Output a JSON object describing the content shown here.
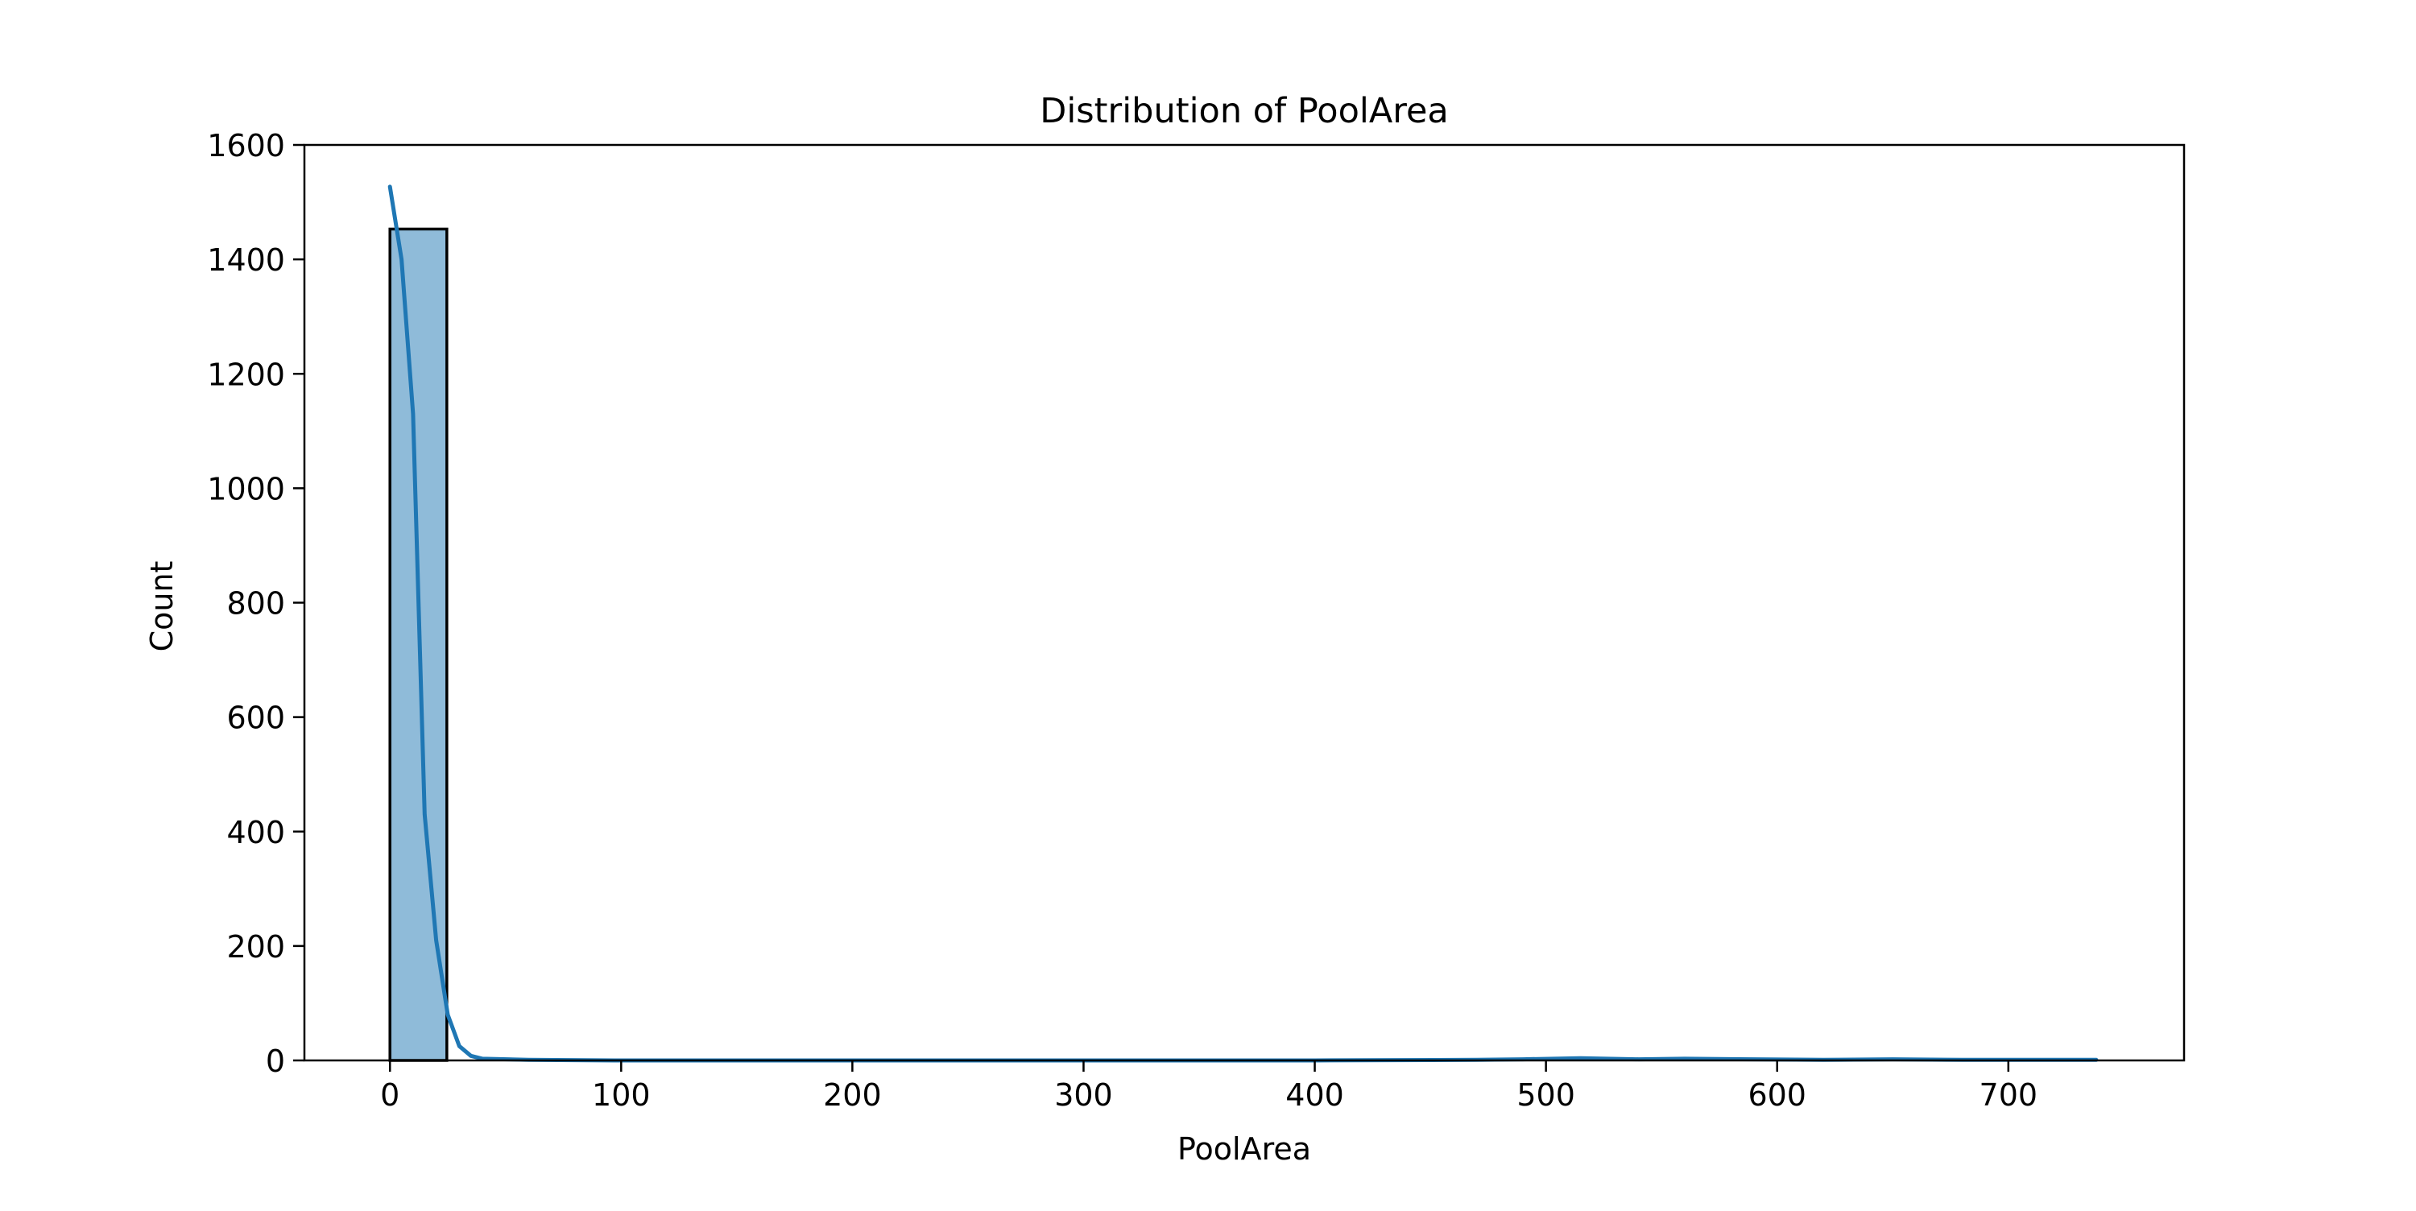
{
  "chart_data": {
    "type": "histogram",
    "title": "Distribution of PoolArea",
    "xlabel": "PoolArea",
    "ylabel": "Count",
    "xlim": [
      -37,
      776
    ],
    "ylim": [
      0,
      1600
    ],
    "xticks": [
      0,
      100,
      200,
      300,
      400,
      500,
      600,
      700
    ],
    "yticks": [
      0,
      200,
      400,
      600,
      800,
      1000,
      1200,
      1400,
      1600
    ],
    "bins": [
      {
        "x0": 0,
        "x1": 24.6,
        "count": 1453
      }
    ],
    "kde": {
      "x": [
        0,
        5,
        10,
        15,
        20,
        25,
        30,
        35,
        40,
        60,
        100,
        200,
        300,
        400,
        470,
        490,
        515,
        540,
        560,
        590,
        620,
        650,
        680,
        710,
        738
      ],
      "y": [
        1527,
        1400,
        1130,
        430,
        210,
        80,
        25,
        8,
        3,
        1,
        0,
        0,
        0,
        0,
        1,
        2,
        4,
        2,
        3,
        2,
        1,
        2,
        1,
        1,
        1
      ]
    },
    "grid": false,
    "colors": {
      "bar_fill": "#1f77b4",
      "bar_fill_opacity": 0.5,
      "bar_edge": "#000000",
      "kde_line": "#1f77b4",
      "axes": "#000000"
    }
  }
}
